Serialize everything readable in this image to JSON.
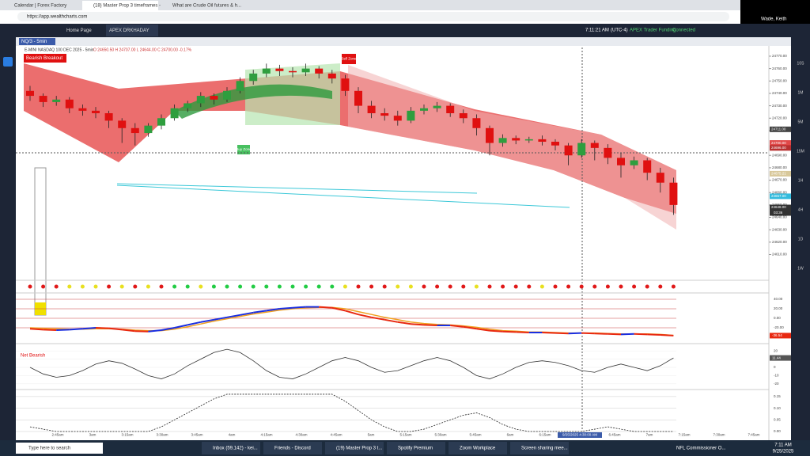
{
  "browser": {
    "tabs": [
      "Calendar | Forex Factory",
      "(18) Master Prop 3 timeframes -",
      "What are Crude Oil futures & h..."
    ],
    "url": "https://app.wealthcharts.com",
    "user": "Wade, Keith"
  },
  "app": {
    "tabs": [
      "Home Page",
      "APEX DRKHADAY"
    ],
    "time": "7:11:21 AM",
    "timezone": "(UTC-4)",
    "account": "APEX Trader Funding",
    "status": "Connected"
  },
  "chart": {
    "symbol_tab": "NQ/3 - 5min",
    "header": "E-MINI NASDAQ 100 DEC 2025 - 5min",
    "ohlc": "O 24650.50 H 24707.00 L 24644.00 C 24700.00 -0.17%",
    "badge": "Bearish Breakout",
    "sell_zone": "Sell Zone",
    "buy_zone": "Buy Zone",
    "ylim": [
      24595,
      24777
    ],
    "yticks": [
      {
        "value": 24770,
        "label": "24770.00"
      },
      {
        "value": 24760,
        "label": "24760.00"
      },
      {
        "value": 24750,
        "label": "24750.00"
      },
      {
        "value": 24740,
        "label": "24740.00"
      },
      {
        "value": 24730,
        "label": "24730.00"
      },
      {
        "value": 24720,
        "label": "24720.00"
      },
      {
        "value": 24710,
        "label": "24710.00"
      },
      {
        "value": 24690,
        "label": "24690.00"
      },
      {
        "value": 24680,
        "label": "24680.00"
      },
      {
        "value": 24670,
        "label": "24670.00"
      },
      {
        "value": 24660,
        "label": "24660.00"
      },
      {
        "value": 24650,
        "label": "24650.00"
      },
      {
        "value": 24640,
        "label": "24640.00"
      },
      {
        "value": 24630,
        "label": "24630.00"
      },
      {
        "value": 24620,
        "label": "24620.00"
      },
      {
        "value": 24610,
        "label": "24610.00"
      }
    ],
    "price_tags": [
      {
        "value": 24711,
        "label": "24711.00",
        "color": "#444444"
      },
      {
        "value": 24700,
        "label": "24700.00",
        "color": "#e04848"
      },
      {
        "value": 24696,
        "label": "24696.00",
        "color": "#b83030"
      },
      {
        "value": 24675.21,
        "label": "24675.21",
        "color": "#d8c89a"
      },
      {
        "value": 24657,
        "label": "24657.00",
        "color": "#33bbdd"
      },
      {
        "value": 24648,
        "label": "24648.00",
        "color": "#333333"
      }
    ],
    "countdown": "03:36",
    "candles": [
      [
        24742,
        24746,
        24734,
        24738
      ],
      [
        24738,
        24740,
        24729,
        24733
      ],
      [
        24733,
        24738,
        24730,
        24735
      ],
      [
        24735,
        24737,
        24724,
        24728
      ],
      [
        24728,
        24731,
        24722,
        24726
      ],
      [
        24726,
        24729,
        24720,
        24724
      ],
      [
        24724,
        24726,
        24712,
        24718
      ],
      [
        24718,
        24720,
        24700,
        24712
      ],
      [
        24712,
        24716,
        24698,
        24708
      ],
      [
        24708,
        24716,
        24705,
        24714
      ],
      [
        24714,
        24723,
        24711,
        24720
      ],
      [
        24720,
        24731,
        24718,
        24728
      ],
      [
        24728,
        24734,
        24725,
        24732
      ],
      [
        24732,
        24741,
        24729,
        24738
      ],
      [
        24738,
        24740,
        24731,
        24735
      ],
      [
        24735,
        24745,
        24733,
        24742
      ],
      [
        24742,
        24753,
        24740,
        24750
      ],
      [
        24750,
        24759,
        24747,
        24756
      ],
      [
        24756,
        24764,
        24753,
        24760
      ],
      [
        24760,
        24763,
        24754,
        24758
      ],
      [
        24758,
        24761,
        24753,
        24757
      ],
      [
        24757,
        24764,
        24754,
        24760
      ],
      [
        24760,
        24762,
        24752,
        24756
      ],
      [
        24756,
        24759,
        24748,
        24752
      ],
      [
        24752,
        24755,
        24738,
        24742
      ],
      [
        24742,
        24745,
        24724,
        24730
      ],
      [
        24730,
        24734,
        24720,
        24724
      ],
      [
        24724,
        24728,
        24718,
        24722
      ],
      [
        24722,
        24726,
        24714,
        24718
      ],
      [
        24718,
        24729,
        24716,
        24726
      ],
      [
        24726,
        24731,
        24723,
        24728
      ],
      [
        24728,
        24733,
        24725,
        24730
      ],
      [
        24730,
        24732,
        24721,
        24724
      ],
      [
        24724,
        24727,
        24716,
        24720
      ],
      [
        24720,
        24723,
        24706,
        24712
      ],
      [
        24712,
        24714,
        24690,
        24700
      ],
      [
        24700,
        24707,
        24697,
        24704
      ],
      [
        24704,
        24706,
        24699,
        24702
      ],
      [
        24702,
        24705,
        24700,
        24703
      ],
      [
        24703,
        24706,
        24698,
        24701
      ],
      [
        24701,
        24703,
        24694,
        24698
      ],
      [
        24698,
        24700,
        24682,
        24690
      ],
      [
        24690,
        24703,
        24688,
        24700
      ],
      [
        24700,
        24702,
        24686,
        24696
      ],
      [
        24696,
        24699,
        24683,
        24688
      ],
      [
        24688,
        24692,
        24672,
        24682
      ],
      [
        24682,
        24689,
        24679,
        24686
      ],
      [
        24686,
        24688,
        24670,
        24676
      ],
      [
        24676,
        24680,
        24660,
        24668
      ],
      [
        24668,
        24672,
        24642,
        24650
      ]
    ],
    "up_color": "#2e9e3e",
    "down_color": "#e01010",
    "time_labels": [
      "2:45am",
      "3am",
      "3:15am",
      "3:30am",
      "3:45am",
      "4am",
      "4:15am",
      "4:30am",
      "4:45am",
      "5am",
      "5:15am",
      "5:30am",
      "5:45am",
      "6am",
      "6:15am",
      "9/25/2025 4:30:00 AM",
      "6:45am",
      "7am",
      "7:15am",
      "7:30am",
      "7:45am"
    ],
    "signal_dots": [
      "#e01818",
      "#e01818",
      "#e01818",
      "#e8e020",
      "#e8e020",
      "#e8e020",
      "#e01818",
      "#e8e020",
      "#e01818",
      "#e8e020",
      "#e01818",
      "#22cc44",
      "#22cc44",
      "#e8e020",
      "#22cc44",
      "#22cc44",
      "#22cc44",
      "#22cc44",
      "#22cc44",
      "#22cc44",
      "#22cc44",
      "#22cc44",
      "#22cc44",
      "#22cc44",
      "#e8e020",
      "#e01818",
      "#e01818",
      "#e01818",
      "#e8e020",
      "#e8e020",
      "#e01818",
      "#e01818",
      "#e01818",
      "#e01818",
      "#e8e020",
      "#e01818",
      "#e01818",
      "#e01818",
      "#e01818",
      "#e8e020",
      "#e01818",
      "#e01818",
      "#e01818",
      "#e01818",
      "#e01818",
      "#e01818",
      "#e01818",
      "#e01818",
      "#e01818",
      "#e01818"
    ],
    "oscillator": {
      "ylim": [
        -50,
        50
      ],
      "yticks": [
        {
          "value": 40,
          "label": "40.00"
        },
        {
          "value": 20,
          "label": "20.00"
        },
        {
          "value": 0,
          "label": "0.00"
        },
        {
          "value": -20,
          "label": "-20.00"
        }
      ],
      "fast": [
        -22,
        -24,
        -25,
        -24,
        -22,
        -20,
        -21,
        -24,
        -27,
        -28,
        -25,
        -20,
        -14,
        -8,
        -3,
        2,
        7,
        12,
        16,
        20,
        22,
        24,
        24,
        22,
        16,
        8,
        2,
        -3,
        -8,
        -12,
        -14,
        -15,
        -15,
        -18,
        -22,
        -26,
        -28,
        -29,
        -30,
        -30,
        -31,
        -32,
        -31,
        -32,
        -33,
        -34,
        -33,
        -34,
        -35,
        -36.54
      ],
      "slow": [
        -20,
        -21,
        -22,
        -23,
        -23,
        -22,
        -22,
        -23,
        -25,
        -26,
        -26,
        -23,
        -18,
        -12,
        -6,
        -1,
        4,
        9,
        13,
        17,
        20,
        22,
        23,
        23,
        20,
        14,
        8,
        2,
        -3,
        -8,
        -11,
        -13,
        -14,
        -16,
        -19,
        -23,
        -26,
        -27,
        -29,
        -29,
        -30,
        -31,
        -31,
        -31,
        -32,
        -33,
        -33,
        -33,
        -34,
        -36
      ],
      "up_color": "#1a2ee0",
      "down_color": "#e82810",
      "slow_color": "#f0a020"
    },
    "momentum": {
      "label": "Net Bearish",
      "ylim": [
        -25,
        25
      ],
      "yticks": [
        20,
        10,
        0,
        -10,
        -20
      ],
      "values": [
        0,
        -8,
        -12,
        -10,
        -4,
        4,
        8,
        5,
        -2,
        -10,
        -14,
        -8,
        2,
        10,
        18,
        22,
        18,
        8,
        -4,
        -12,
        -14,
        -8,
        0,
        8,
        12,
        8,
        0,
        -6,
        -4,
        2,
        8,
        12,
        8,
        0,
        -10,
        -14,
        -8,
        0,
        6,
        8,
        6,
        2,
        -4,
        -6,
        0,
        4,
        0,
        -4,
        2,
        11.44
      ]
    },
    "probability": {
      "ylim": [
        0,
        0.17
      ],
      "yticks": [
        {
          "value": 0.15,
          "label": "0.15"
        },
        {
          "value": 0.1,
          "label": "0.10"
        },
        {
          "value": 0.05,
          "label": "0.05"
        },
        {
          "value": 0,
          "label": "0.00"
        }
      ],
      "values": [
        0.02,
        0.01,
        0,
        0,
        0,
        0,
        0,
        0,
        0,
        0,
        0.02,
        0.05,
        0.08,
        0.11,
        0.14,
        0.16,
        0.16,
        0.16,
        0.16,
        0.16,
        0.16,
        0.16,
        0.16,
        0.16,
        0.13,
        0.09,
        0.05,
        0.02,
        0,
        0,
        0.01,
        0.03,
        0.05,
        0.07,
        0.08,
        0.06,
        0.03,
        0.01,
        0,
        0,
        0,
        0,
        0,
        0.01,
        0.02,
        0.01,
        0,
        0,
        0,
        0
      ]
    },
    "timeframes": [
      "10S",
      "1M",
      "5M",
      "15M",
      "1H",
      "4H",
      "1D",
      "1W"
    ]
  },
  "taskbar": {
    "search": "Type here to search",
    "items": [
      "Inbox (59,142) - kei...",
      "Friends - Discord",
      "(19) Master Prop 3 t...",
      "Spotify Premium",
      "Zoom Workplace",
      "Screen sharing mee..."
    ],
    "news": "NFL Commissioner O...",
    "time": "7:11 AM",
    "date": "9/25/2025"
  }
}
